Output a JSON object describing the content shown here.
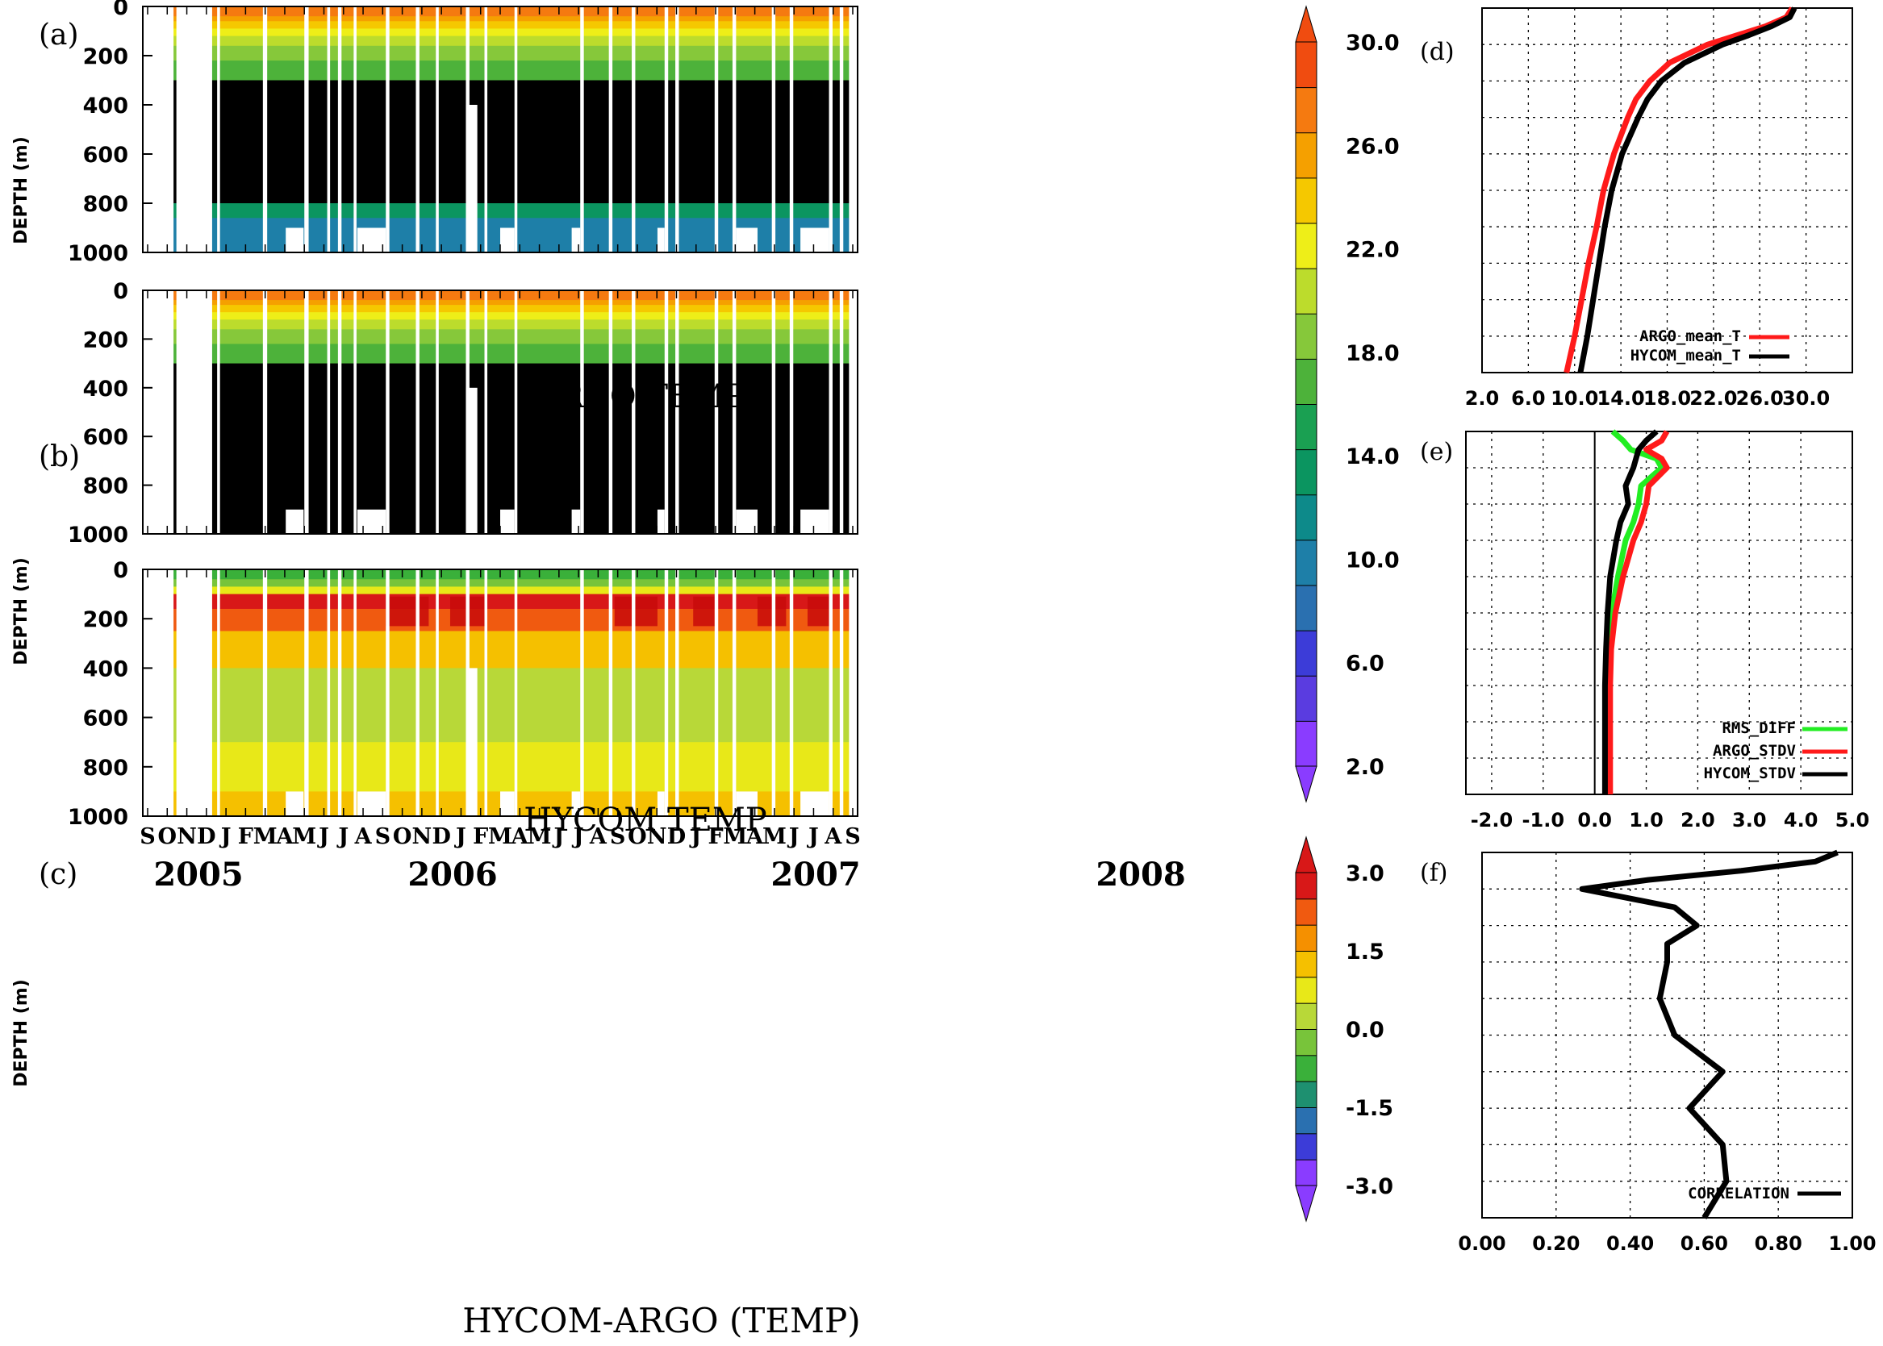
{
  "chart_data": [
    {
      "id": "a",
      "type": "heatmap",
      "panel_label": "(a)",
      "title": "ARGO TEMP",
      "ylabel": "DEPTH (m)",
      "ylim": [
        0,
        1000
      ],
      "yticks": [
        0,
        200,
        400,
        600,
        800,
        1000
      ],
      "xlim": [
        "2005-09",
        "2008-09"
      ],
      "variable": "temperature",
      "colorbar": {
        "levels": [
          2.0,
          6.0,
          10.0,
          14.0,
          18.0,
          22.0,
          26.0,
          30.0
        ]
      }
    },
    {
      "id": "b",
      "type": "heatmap",
      "panel_label": "(b)",
      "title": "HYCOM TEMP",
      "ylabel": "DEPTH (m)",
      "ylim": [
        0,
        1000
      ],
      "yticks": [
        0,
        200,
        400,
        600,
        800,
        1000
      ],
      "xlim": [
        "2005-09",
        "2008-09"
      ],
      "variable": "temperature"
    },
    {
      "id": "c",
      "type": "heatmap",
      "panel_label": "(c)",
      "title": "HYCOM-ARGO (TEMP)",
      "ylabel": "DEPTH (m)",
      "ylim": [
        0,
        1000
      ],
      "yticks": [
        0,
        200,
        400,
        600,
        800,
        1000
      ],
      "months": [
        "S",
        "O",
        "N",
        "D",
        "J",
        "F",
        "M",
        "A",
        "M",
        "J",
        "J",
        "A",
        "S",
        "O",
        "N",
        "D",
        "J",
        "F",
        "M",
        "A",
        "M",
        "J",
        "J",
        "A",
        "S",
        "O",
        "N",
        "D",
        "J",
        "F",
        "M",
        "A",
        "M",
        "J",
        "J",
        "A",
        "S"
      ],
      "years": [
        "2005",
        "2006",
        "2007",
        "2008"
      ],
      "colorbar": {
        "levels": [
          -3.0,
          -1.5,
          0.0,
          1.5,
          3.0
        ]
      }
    },
    {
      "id": "d",
      "type": "line",
      "panel_label": "(d)",
      "xticks": [
        "2.0",
        "6.0",
        "10.0",
        "14.0",
        "18.0",
        "22.0",
        "26.0",
        "30.0"
      ],
      "xlim": [
        2,
        34
      ],
      "ylim": [
        0,
        1000
      ],
      "grid": true,
      "legend": "bottom-right",
      "depth": [
        0,
        25,
        50,
        75,
        100,
        150,
        200,
        250,
        300,
        400,
        500,
        600,
        700,
        800,
        900,
        1000
      ],
      "series": [
        {
          "name": "ARGO_mean_T",
          "color": "#ff1a1a",
          "values": [
            28.8,
            28.3,
            26.5,
            24.0,
            21.5,
            18.2,
            16.5,
            15.3,
            14.6,
            13.4,
            12.5,
            11.9,
            11.2,
            10.6,
            10.0,
            9.3
          ]
        },
        {
          "name": "HYCOM_mean_T",
          "color": "#000000",
          "values": [
            29.0,
            28.6,
            27.0,
            25.0,
            22.8,
            19.5,
            17.5,
            16.3,
            15.5,
            14.1,
            13.2,
            12.6,
            12.1,
            11.6,
            11.1,
            10.5
          ]
        }
      ]
    },
    {
      "id": "e",
      "type": "line",
      "panel_label": "(e)",
      "xticks": [
        "-2.0",
        "-1.0",
        "0.0",
        "1.0",
        "2.0",
        "3.0",
        "4.0",
        "5.0"
      ],
      "xlim": [
        -2.5,
        5
      ],
      "ylim": [
        0,
        1000
      ],
      "grid": true,
      "legend": "bottom-right",
      "depth": [
        0,
        25,
        50,
        75,
        100,
        150,
        200,
        250,
        300,
        400,
        500,
        600,
        700,
        800,
        900,
        1000
      ],
      "series": [
        {
          "name": "RMS_DIFF",
          "color": "#22ee22",
          "values": [
            0.35,
            0.55,
            0.7,
            1.2,
            1.3,
            0.9,
            0.85,
            0.75,
            0.6,
            0.45,
            0.33,
            0.28,
            0.26,
            0.25,
            0.25,
            0.25
          ]
        },
        {
          "name": "ARGO_STDV",
          "color": "#ff1a1a",
          "values": [
            1.4,
            1.3,
            1.0,
            1.3,
            1.4,
            1.05,
            1.0,
            0.9,
            0.75,
            0.55,
            0.4,
            0.32,
            0.3,
            0.3,
            0.3,
            0.3
          ]
        },
        {
          "name": "HYCOM_STDV",
          "color": "#000000",
          "values": [
            1.2,
            1.0,
            0.85,
            0.8,
            0.75,
            0.6,
            0.65,
            0.5,
            0.42,
            0.3,
            0.25,
            0.22,
            0.2,
            0.2,
            0.2,
            0.2
          ]
        }
      ]
    },
    {
      "id": "f",
      "type": "line",
      "panel_label": "(f)",
      "xticks": [
        "0.00",
        "0.20",
        "0.40",
        "0.60",
        "0.80",
        "1.00"
      ],
      "xlim": [
        0,
        1
      ],
      "ylim": [
        0,
        1000
      ],
      "grid": true,
      "legend": "bottom-right",
      "depth": [
        0,
        25,
        50,
        75,
        100,
        150,
        200,
        250,
        300,
        400,
        500,
        600,
        700,
        800,
        900,
        1000
      ],
      "series": [
        {
          "name": "CORRELATION",
          "color": "#000000",
          "values": [
            0.96,
            0.9,
            0.7,
            0.45,
            0.27,
            0.52,
            0.58,
            0.5,
            0.5,
            0.48,
            0.52,
            0.65,
            0.56,
            0.65,
            0.66,
            0.6
          ]
        }
      ]
    }
  ]
}
